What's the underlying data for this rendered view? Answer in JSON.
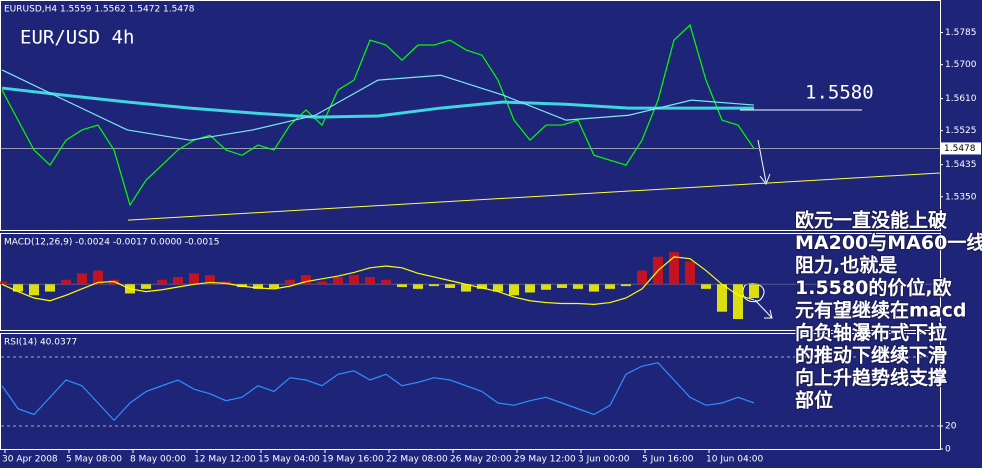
{
  "chart_data": [
    {
      "type": "line",
      "title": "EURUSD,H4  1.5559 1.5562 1.5472 1.5478",
      "annotation": "EUR/USD 4h",
      "ylim": [
        1.5262,
        1.5866
      ],
      "yticks": [
        {
          "value": 1.535,
          "label": "1.5350"
        },
        1.5435,
        1.5525,
        {
          "value": 1.561,
          "label": "1.5610"
        },
        {
          "value": 1.57,
          "label": "1.5700"
        },
        1.5785
      ],
      "last_price": 1.5478,
      "resistance": {
        "value": 1.558,
        "label": "1.5580"
      },
      "trendline": [
        1.5288,
        1.5413
      ],
      "series": [
        {
          "color": "#00ff00",
          "values": [
            1.5633,
            1.5553,
            1.5474,
            1.5434,
            1.55,
            1.5527,
            1.554,
            1.5474,
            1.5328,
            1.5394,
            1.5434,
            1.5474,
            1.55,
            1.5513,
            1.5474,
            1.546,
            1.5487,
            1.5474,
            1.554,
            1.558,
            1.554,
            1.5633,
            1.5659,
            1.5765,
            1.5752,
            1.5712,
            1.5752,
            1.5752,
            1.5765,
            1.5739,
            1.5725,
            1.5659,
            1.5553,
            1.55,
            1.554,
            1.554,
            1.5553,
            1.546,
            1.5447,
            1.5434,
            1.55,
            1.5606,
            1.5765,
            1.5805,
            1.5659,
            1.5553,
            1.554,
            1.5478
          ]
        },
        {
          "color": "#3fd6e0",
          "values": [
            1.5638,
            1.5619,
            1.5601,
            1.5585,
            1.5572,
            1.5561,
            1.5564,
            1.5585,
            1.5601,
            1.5595,
            1.5585,
            1.5585,
            1.5585
          ]
        },
        {
          "color": "#7fe8f0",
          "values": [
            1.5686,
            1.5606,
            1.5527,
            1.55,
            1.5527,
            1.5566,
            1.5659,
            1.5672,
            1.5619,
            1.5553,
            1.5566,
            1.5606,
            1.5593
          ]
        }
      ]
    },
    {
      "type": "bar",
      "title": "MACD(12,26,9) -0.0024 -0.0017 0.0000 -0.0015",
      "ylim": [
        -0.005,
        0.0055
      ],
      "up_color": "#e01010",
      "down_color": "#ffff00",
      "values": [
        0.0003,
        -0.0008,
        -0.0012,
        -0.0008,
        0.0005,
        0.0012,
        0.0015,
        0.0005,
        -0.001,
        -0.0005,
        0.0005,
        0.0008,
        0.0012,
        0.001,
        0.0003,
        -0.0003,
        -0.0005,
        -0.0004,
        0.0005,
        0.001,
        0.0003,
        0.0008,
        0.001,
        0.0008,
        0.0005,
        -0.0003,
        -0.0005,
        -0.0002,
        -0.0004,
        -0.0008,
        -0.0005,
        -0.0008,
        -0.0012,
        -0.0009,
        -0.0006,
        -0.0004,
        -0.0005,
        -0.0008,
        -0.0005,
        -0.0002,
        0.0015,
        0.003,
        0.0035,
        0.0025,
        -0.0005,
        -0.003,
        -0.0038,
        -0.0015
      ],
      "signal": {
        "color": "#ffff00",
        "values": [
          0,
          -0.0008,
          -0.0015,
          -0.0018,
          -0.0012,
          -0.0005,
          0.0002,
          0.0003,
          -0.0005,
          -0.0008,
          -0.0006,
          -0.0003,
          0,
          0.0002,
          0.0001,
          -0.0002,
          -0.0004,
          -0.0005,
          -0.0002,
          0.0003,
          0.0006,
          0.0009,
          0.0013,
          0.0018,
          0.002,
          0.0018,
          0.0012,
          0.0008,
          0.0004,
          0,
          -0.0004,
          -0.0008,
          -0.0014,
          -0.0018,
          -0.002,
          -0.0021,
          -0.0021,
          -0.0022,
          -0.002,
          -0.0015,
          -0.0005,
          0.0015,
          0.003,
          0.0028,
          0.0015,
          0,
          -0.0012,
          -0.0017
        ]
      }
    },
    {
      "type": "line",
      "title": "RSI(14) 40.0377",
      "ylim": [
        0,
        100
      ],
      "yticks": [
        0,
        20
      ],
      "levels": [
        20,
        80
      ],
      "series": [
        {
          "color": "#2f8fff",
          "values": [
            55,
            35,
            30,
            45,
            60,
            55,
            40,
            25,
            40,
            50,
            55,
            60,
            52,
            48,
            42,
            45,
            55,
            50,
            62,
            60,
            55,
            65,
            68,
            60,
            65,
            55,
            58,
            62,
            60,
            55,
            50,
            40,
            38,
            42,
            45,
            40,
            35,
            30,
            38,
            65,
            72,
            75,
            60,
            45,
            38,
            40,
            45,
            40.0377
          ]
        }
      ]
    }
  ],
  "x_labels": [
    "30 Apr 2008",
    "5 May 08:00",
    "8 May 00:00",
    "12 May 12:00",
    "15 May 04:00",
    "19 May 16:00",
    "22 May 08:00",
    "26 May 20:00",
    "29 May 12:00",
    "3 Jun 00:00",
    "5 Jun 16:00",
    "10 Jun 04:00"
  ],
  "comment_lines": [
    "欧元一直没能上破",
    "MA200与MA60一线",
    "阻力,也就是",
    "1.5580的价位,欧",
    "元有望继续在macd",
    "向负轴瀑布式下拉",
    "的推动下继续下滑",
    "向上升趋势线支撑",
    "部位"
  ]
}
